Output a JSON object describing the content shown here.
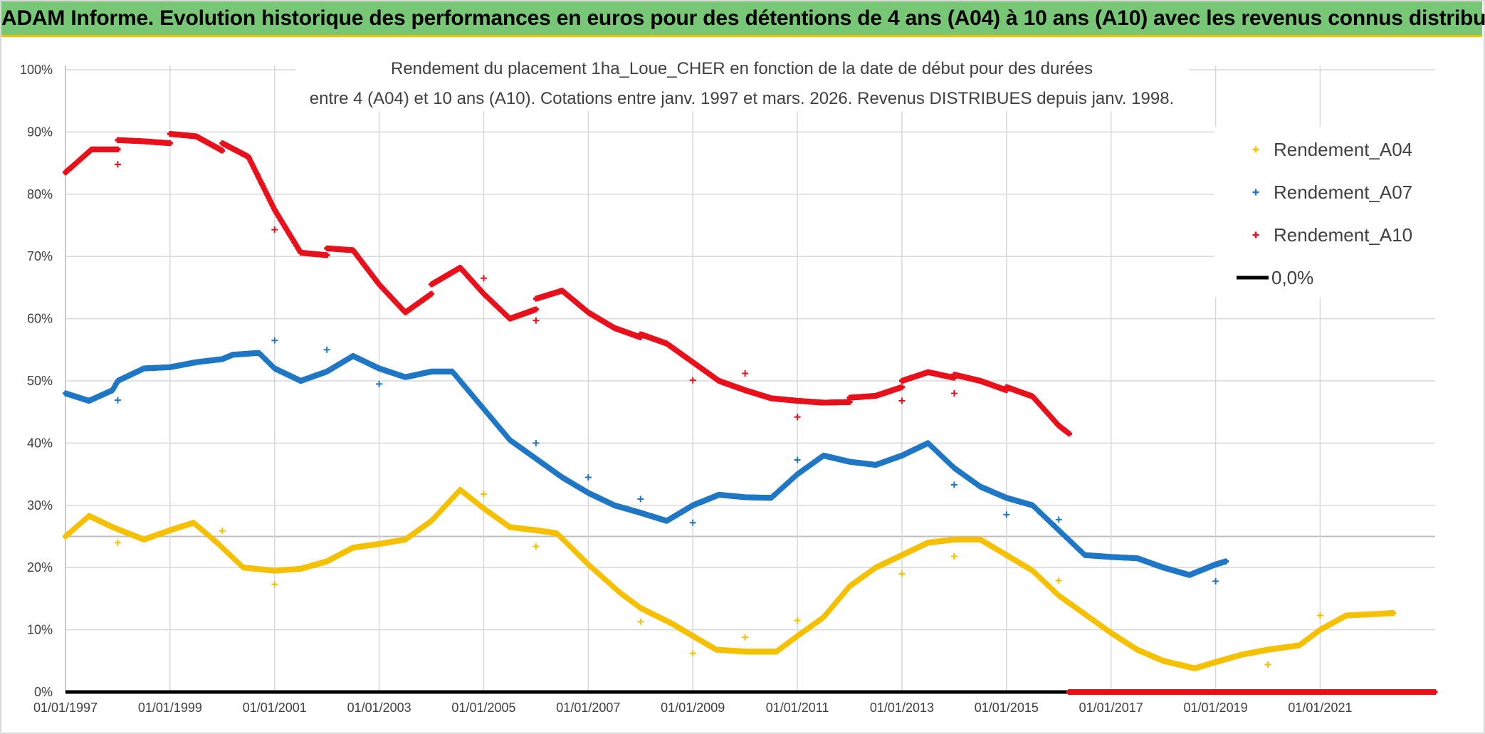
{
  "banner": {
    "title": "ADAM Informe. Evolution historique des performances en euros pour des détentions de 4 ans (A04) à 10 ans (A10) avec les revenus connus distribués",
    "background": "#77c776",
    "accent": "#f2c200"
  },
  "chart_data": {
    "type": "scatter",
    "title_line1": "Rendement du placement 1ha_Loue_CHER en fonction de la date de début pour des durées",
    "title_line2": "entre 4 (A04) et 10 ans (A10). Cotations entre janv. 1997 et mars. 2026. Revenus DISTRIBUES depuis janv. 1998.",
    "xlabel": "",
    "ylabel": "",
    "xlim": [
      1997.0,
      2023.2
    ],
    "ylim": [
      0,
      100
    ],
    "grid": true,
    "legend_position": "right",
    "x_ticks": [
      "01/01/1997",
      "01/01/1999",
      "01/01/2001",
      "01/01/2003",
      "01/01/2005",
      "01/01/2007",
      "01/01/2009",
      "01/01/2011",
      "01/01/2013",
      "01/01/2015",
      "01/01/2017",
      "01/01/2019",
      "01/01/2021"
    ],
    "x_tick_values": [
      1997,
      1999,
      2001,
      2003,
      2005,
      2007,
      2009,
      2011,
      2013,
      2015,
      2017,
      2019,
      2021
    ],
    "y_ticks": [
      "0%",
      "10%",
      "20%",
      "30%",
      "40%",
      "50%",
      "60%",
      "70%",
      "80%",
      "90%",
      "100%"
    ],
    "y_tick_values": [
      0,
      10,
      20,
      30,
      40,
      50,
      60,
      70,
      80,
      90,
      100
    ],
    "series": [
      {
        "name": "Rendement_A04",
        "color": "#f5c000",
        "marker": "+",
        "points": [
          [
            1997.0,
            25
          ],
          [
            1997.45,
            28.3
          ],
          [
            1997.9,
            26.5
          ],
          [
            1998.5,
            24.5
          ],
          [
            1999.0,
            26
          ],
          [
            1999.45,
            27.2
          ],
          [
            1999.9,
            24
          ],
          [
            2000.4,
            20
          ],
          [
            2001.0,
            19.5
          ],
          [
            2001.5,
            19.8
          ],
          [
            2002.0,
            21
          ],
          [
            2002.5,
            23.2
          ],
          [
            2003.0,
            23.8
          ],
          [
            2003.5,
            24.5
          ],
          [
            2004.0,
            27.5
          ],
          [
            2004.55,
            32.5
          ],
          [
            2005.0,
            29.5
          ],
          [
            2005.5,
            26.5
          ],
          [
            2006.0,
            26
          ],
          [
            2006.4,
            25.5
          ],
          [
            2007.0,
            20.5
          ],
          [
            2007.6,
            16
          ],
          [
            2008.0,
            13.5
          ],
          [
            2008.6,
            11
          ],
          [
            2009.0,
            9
          ],
          [
            2009.45,
            6.8
          ],
          [
            2010.0,
            6.5
          ],
          [
            2010.6,
            6.5
          ],
          [
            2011.0,
            9
          ],
          [
            2011.5,
            12
          ],
          [
            2012.0,
            17
          ],
          [
            2012.5,
            20
          ],
          [
            2013.0,
            22
          ],
          [
            2013.5,
            24
          ],
          [
            2014.0,
            24.5
          ],
          [
            2014.5,
            24.5
          ],
          [
            2015.0,
            22
          ],
          [
            2015.5,
            19.5
          ],
          [
            2016.0,
            15.5
          ],
          [
            2016.5,
            12.5
          ],
          [
            2017.0,
            9.5
          ],
          [
            2017.5,
            6.8
          ],
          [
            2018.0,
            5
          ],
          [
            2018.6,
            3.8
          ],
          [
            2019.0,
            4.8
          ],
          [
            2019.5,
            6
          ],
          [
            2020.0,
            6.8
          ],
          [
            2020.6,
            7.5
          ],
          [
            2021.0,
            10
          ],
          [
            2021.5,
            12.3
          ],
          [
            2022.0,
            12.5
          ],
          [
            2022.4,
            12.7
          ]
        ],
        "outliers": [
          [
            1998.0,
            24
          ],
          [
            2001.0,
            17.3
          ],
          [
            2005.0,
            31.8
          ],
          [
            2006.0,
            23.4
          ],
          [
            2008.0,
            11.3
          ],
          [
            2009.0,
            6.2
          ],
          [
            2010.0,
            8.8
          ],
          [
            2011.0,
            11.5
          ],
          [
            2013.0,
            19
          ],
          [
            2014.0,
            21.8
          ],
          [
            2016.0,
            17.9
          ],
          [
            2020.0,
            4.4
          ],
          [
            2021.0,
            12.3
          ],
          [
            2000.0,
            25.9
          ]
        ]
      },
      {
        "name": "Rendement_A07",
        "color": "#1f77c4",
        "marker": "+",
        "points": [
          [
            1997.0,
            48
          ],
          [
            1997.45,
            46.8
          ],
          [
            1997.9,
            48.5
          ],
          [
            1998.0,
            50
          ],
          [
            1998.5,
            52
          ],
          [
            1999.0,
            52.2
          ],
          [
            1999.5,
            53
          ],
          [
            2000.0,
            53.5
          ],
          [
            2000.2,
            54.2
          ],
          [
            2000.7,
            54.5
          ],
          [
            2001.0,
            52
          ],
          [
            2001.5,
            50
          ],
          [
            2002.0,
            51.5
          ],
          [
            2002.5,
            54
          ],
          [
            2003.0,
            52
          ],
          [
            2003.5,
            50.6
          ],
          [
            2004.0,
            51.5
          ],
          [
            2004.4,
            51.5
          ],
          [
            2005.0,
            45.5
          ],
          [
            2005.5,
            40.5
          ],
          [
            2006.0,
            37.5
          ],
          [
            2006.5,
            34.5
          ],
          [
            2007.0,
            32
          ],
          [
            2007.5,
            30
          ],
          [
            2008.0,
            28.8
          ],
          [
            2008.5,
            27.5
          ],
          [
            2009.0,
            30
          ],
          [
            2009.5,
            31.7
          ],
          [
            2010.0,
            31.3
          ],
          [
            2010.5,
            31.2
          ],
          [
            2011.0,
            35
          ],
          [
            2011.5,
            38
          ],
          [
            2012.0,
            37
          ],
          [
            2012.5,
            36.5
          ],
          [
            2013.0,
            38
          ],
          [
            2013.5,
            40
          ],
          [
            2014.0,
            36
          ],
          [
            2014.5,
            33
          ],
          [
            2015.0,
            31.2
          ],
          [
            2015.5,
            30
          ],
          [
            2016.0,
            26
          ],
          [
            2016.5,
            22
          ],
          [
            2017.0,
            21.7
          ],
          [
            2017.5,
            21.5
          ],
          [
            2018.0,
            20
          ],
          [
            2018.5,
            18.8
          ],
          [
            2019.0,
            20.5
          ],
          [
            2019.2,
            21
          ]
        ],
        "outliers": [
          [
            1998.0,
            46.9
          ],
          [
            2001.0,
            56.5
          ],
          [
            2002.0,
            55
          ],
          [
            2003.0,
            49.5
          ],
          [
            2006.0,
            40
          ],
          [
            2007.0,
            34.5
          ],
          [
            2008.0,
            31
          ],
          [
            2009.0,
            27.2
          ],
          [
            2011.0,
            37.3
          ],
          [
            2014.0,
            33.3
          ],
          [
            2015.0,
            28.5
          ],
          [
            2016.0,
            27.7
          ],
          [
            2019.0,
            17.8
          ]
        ]
      },
      {
        "name": "Rendement_A10",
        "color": "#e8101a",
        "marker": "+",
        "points": [
          [
            1997.0,
            83.5
          ],
          [
            1997.5,
            87.2
          ],
          [
            1998.0,
            87.2
          ],
          [
            1998.0,
            88.7
          ],
          [
            1998.5,
            88.5
          ],
          [
            1999.0,
            88.2
          ],
          [
            1999.0,
            89.7
          ],
          [
            1999.5,
            89.3
          ],
          [
            2000.0,
            87
          ],
          [
            2000.0,
            88.2
          ],
          [
            2000.5,
            86
          ],
          [
            2001.0,
            77.5
          ],
          [
            2001.5,
            70.6
          ],
          [
            2002.0,
            70.2
          ],
          [
            2002.0,
            71.3
          ],
          [
            2002.5,
            71
          ],
          [
            2003.0,
            65.5
          ],
          [
            2003.5,
            61
          ],
          [
            2004.0,
            64
          ],
          [
            2004.0,
            65.5
          ],
          [
            2004.55,
            68.2
          ],
          [
            2005.0,
            64
          ],
          [
            2005.5,
            60
          ],
          [
            2006.0,
            61.5
          ],
          [
            2006.0,
            63.2
          ],
          [
            2006.5,
            64.5
          ],
          [
            2007.0,
            61
          ],
          [
            2007.5,
            58.5
          ],
          [
            2008.0,
            57
          ],
          [
            2008.0,
            57.5
          ],
          [
            2008.5,
            56
          ],
          [
            2009.0,
            53
          ],
          [
            2009.5,
            50
          ],
          [
            2010.0,
            48.5
          ],
          [
            2010.5,
            47.2
          ],
          [
            2011.0,
            46.8
          ],
          [
            2011.5,
            46.5
          ],
          [
            2012.0,
            46.6
          ],
          [
            2012.0,
            47.3
          ],
          [
            2012.5,
            47.6
          ],
          [
            2013.0,
            49
          ],
          [
            2013.0,
            50
          ],
          [
            2013.5,
            51.4
          ],
          [
            2014.0,
            50.5
          ],
          [
            2014.0,
            51
          ],
          [
            2014.5,
            50
          ],
          [
            2015.0,
            48.5
          ],
          [
            2015.0,
            49
          ],
          [
            2015.5,
            47.5
          ],
          [
            2016.0,
            42.8
          ],
          [
            2016.2,
            41.5
          ]
        ],
        "outliers": [
          [
            1998.0,
            84.8
          ],
          [
            2001.0,
            74.3
          ],
          [
            2005.0,
            66.5
          ],
          [
            2006.0,
            59.7
          ],
          [
            2009.0,
            50.1
          ],
          [
            2010.0,
            51.2
          ],
          [
            2011.0,
            44.2
          ],
          [
            2013.0,
            46.8
          ],
          [
            2014.0,
            48
          ]
        ]
      },
      {
        "name": "0,0%",
        "color": "#000000",
        "marker": "line",
        "points": [
          [
            1997.0,
            0
          ],
          [
            2023.2,
            0
          ]
        ],
        "outliers": []
      }
    ],
    "a10_zero_segment": {
      "from": 2016.2,
      "to": 2023.2,
      "value": 0
    }
  }
}
